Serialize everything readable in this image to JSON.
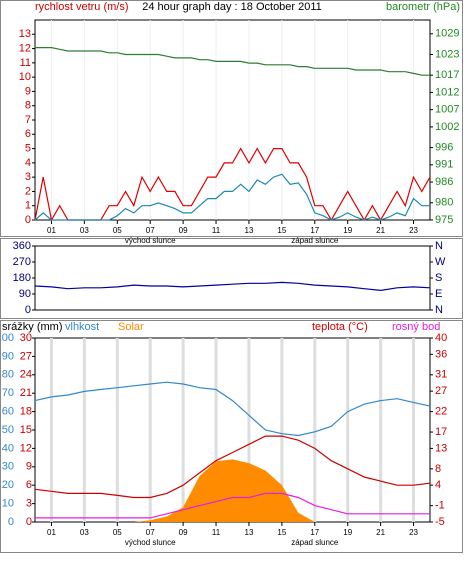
{
  "chart_data": [
    {
      "type": "line",
      "title": "24 hour graph day : 18 October 2011",
      "ylabel": "rychlost vetru (m/s)",
      "y2label": "barometr (hPa)",
      "ycolor": "#cc0000",
      "y2color": "#228b22",
      "grid": true,
      "x": [
        0,
        0.5,
        1,
        1.5,
        2,
        2.5,
        3,
        3.5,
        4,
        4.5,
        5,
        5.5,
        6,
        6.5,
        7,
        7.5,
        8,
        8.5,
        9,
        9.5,
        10,
        10.5,
        11,
        11.5,
        12,
        12.5,
        13,
        13.5,
        14,
        14.5,
        15,
        15.5,
        16,
        16.5,
        17,
        17.5,
        18,
        18.5,
        19,
        19.5,
        20,
        20.5,
        21,
        21.5,
        22,
        22.5,
        23,
        23.5,
        24
      ],
      "xlim": [
        0,
        24
      ],
      "xticks": [
        {
          "value": 1,
          "label": "01"
        },
        {
          "value": 3,
          "label": "03"
        },
        {
          "value": 5,
          "label": "05"
        },
        {
          "value": 7,
          "label": "07"
        },
        {
          "value": 9,
          "label": "09"
        },
        {
          "value": 11,
          "label": "11"
        },
        {
          "value": 13,
          "label": "13"
        },
        {
          "value": 15,
          "label": "15"
        },
        {
          "value": 17,
          "label": "17"
        },
        {
          "value": 19,
          "label": "19"
        },
        {
          "value": 21,
          "label": "21"
        },
        {
          "value": 23,
          "label": "23"
        }
      ],
      "ylim": [
        0,
        14
      ],
      "yticks": [
        0,
        1,
        2,
        3,
        4,
        5,
        6,
        7,
        8,
        9,
        10,
        11,
        12,
        13
      ],
      "y2lim": [
        975,
        1033
      ],
      "y2ticks": [
        975,
        980,
        986,
        991,
        996,
        1002,
        1007,
        1012,
        1017,
        1023,
        1029
      ],
      "annotations": [
        {
          "text": "východ slunce",
          "x": 7
        },
        {
          "text": "západ slunce",
          "x": 17
        }
      ],
      "series": [
        {
          "color": "#e00000",
          "values": [
            0,
            3,
            0,
            1,
            0,
            0,
            0,
            0,
            0,
            1,
            1,
            2,
            1,
            3,
            2,
            3,
            2,
            2,
            1,
            1,
            2,
            3,
            3,
            4,
            4,
            5,
            4,
            5,
            4,
            5,
            5,
            4,
            4,
            3,
            1,
            1,
            0,
            1,
            2,
            1,
            0,
            1,
            0,
            1,
            2,
            1,
            3,
            2,
            3
          ]
        },
        {
          "color": "#1a8ab0",
          "values": [
            0,
            0.5,
            0,
            0,
            0,
            0,
            0,
            0,
            0,
            0,
            0.3,
            0.8,
            0.5,
            1,
            1,
            1.2,
            1,
            0.8,
            0.5,
            0.5,
            1,
            1.5,
            1.5,
            2,
            2,
            2.5,
            2,
            2.8,
            2.5,
            3,
            3.2,
            2.5,
            2.6,
            1.8,
            0.5,
            0.3,
            0,
            0.2,
            0.5,
            0.2,
            0,
            0.2,
            0,
            0.2,
            0.5,
            0.3,
            1.5,
            1,
            1
          ]
        },
        {
          "color": "#2e7d32",
          "axis": "y2",
          "values": [
            1025,
            1025,
            1025,
            1024.5,
            1024,
            1024,
            1024,
            1024,
            1024,
            1023.5,
            1023.5,
            1023,
            1023,
            1023,
            1023,
            1023,
            1022.5,
            1022,
            1022,
            1022,
            1021.5,
            1021.5,
            1021,
            1021,
            1021,
            1021,
            1020.5,
            1020.5,
            1020,
            1020,
            1020,
            1020,
            1019.5,
            1019.5,
            1019,
            1019,
            1019,
            1019,
            1019,
            1018.5,
            1018.5,
            1018.5,
            1018.5,
            1018,
            1018,
            1018,
            1017.5,
            1017,
            1017
          ]
        }
      ]
    },
    {
      "type": "line",
      "ycolor": "#000080",
      "y2color": "#000080",
      "x": [
        0,
        1,
        2,
        3,
        4,
        5,
        6,
        7,
        8,
        9,
        10,
        11,
        12,
        13,
        14,
        15,
        16,
        17,
        18,
        19,
        20,
        21,
        22,
        23,
        24
      ],
      "xlim": [
        0,
        24
      ],
      "ylim": [
        0,
        360
      ],
      "yticks": [
        0,
        90,
        180,
        270,
        360
      ],
      "y2lim": [
        0,
        360
      ],
      "y2ticks": [
        {
          "value": 360,
          "label": "N"
        },
        {
          "value": 270,
          "label": "W"
        },
        {
          "value": 180,
          "label": "S"
        },
        {
          "value": 90,
          "label": "E"
        },
        {
          "value": 0,
          "label": "N"
        }
      ],
      "series": [
        {
          "color": "#0000a0",
          "values": [
            135,
            130,
            120,
            125,
            125,
            130,
            140,
            135,
            135,
            130,
            135,
            140,
            145,
            150,
            150,
            155,
            150,
            140,
            135,
            130,
            120,
            110,
            125,
            130,
            125
          ]
        }
      ]
    },
    {
      "type": "line",
      "y3label": "srážky (mm)",
      "ycolor": "#3388cc",
      "y2color": "#cc0000",
      "y3color": "#cc0000",
      "grid": true,
      "x": [
        0,
        1,
        2,
        3,
        4,
        5,
        6,
        7,
        8,
        9,
        10,
        11,
        12,
        13,
        14,
        15,
        16,
        17,
        18,
        19,
        20,
        21,
        22,
        23,
        24
      ],
      "xlim": [
        0,
        24
      ],
      "xticks": [
        {
          "value": 1,
          "label": "01"
        },
        {
          "value": 3,
          "label": "03"
        },
        {
          "value": 5,
          "label": "05"
        },
        {
          "value": 7,
          "label": "07"
        },
        {
          "value": 9,
          "label": "09"
        },
        {
          "value": 11,
          "label": "11"
        },
        {
          "value": 13,
          "label": "13"
        },
        {
          "value": 15,
          "label": "15"
        },
        {
          "value": 17,
          "label": "17"
        },
        {
          "value": 19,
          "label": "19"
        },
        {
          "value": 21,
          "label": "21"
        },
        {
          "value": 23,
          "label": "23"
        }
      ],
      "ylim": [
        0,
        100
      ],
      "yticks": [
        0,
        10,
        20,
        30,
        40,
        50,
        60,
        70,
        80,
        90,
        100
      ],
      "y3lim": [
        0,
        30
      ],
      "y3ticks": [
        0,
        3,
        6,
        9,
        12,
        15,
        18,
        21,
        24,
        27,
        30
      ],
      "y2lim": [
        -5,
        40
      ],
      "y2ticks": [
        -5,
        -1,
        4,
        8,
        13,
        17,
        22,
        27,
        31,
        36,
        40
      ],
      "annotations": [
        {
          "text": "východ slunce",
          "x": 7
        },
        {
          "text": "západ slunce",
          "x": 17
        }
      ],
      "series": [
        {
          "name": "vlhkost",
          "color": "#3388cc",
          "values": [
            66,
            68,
            69,
            71,
            72,
            73,
            74,
            75,
            76,
            75,
            73,
            72,
            66,
            58,
            50,
            48,
            47,
            49,
            52,
            60,
            64,
            66,
            67,
            65,
            63
          ]
        },
        {
          "name": "Solar",
          "color": "#ff8c00",
          "fill": true,
          "values": [
            0,
            0,
            0,
            0,
            0,
            0,
            0,
            1,
            3,
            8,
            25,
            33,
            34,
            32,
            28,
            20,
            5,
            0,
            0,
            0,
            0,
            0,
            0,
            0,
            0
          ]
        },
        {
          "name": "teplota (°C)",
          "color": "#cc0000",
          "axis": "y2",
          "values": [
            3,
            2.5,
            2,
            2,
            2,
            1.5,
            1,
            1,
            2,
            4,
            7,
            10,
            12,
            14,
            16,
            16,
            15,
            13,
            10,
            8,
            6,
            5,
            4,
            4,
            4.5
          ]
        },
        {
          "name": "rosný bod",
          "color": "#e020e0",
          "axis": "y2",
          "values": [
            -4,
            -4,
            -4,
            -4,
            -4,
            -4,
            -4,
            -4,
            -3,
            -2,
            -1,
            0,
            1,
            1,
            2,
            2,
            1,
            -1,
            -2,
            -3,
            -3,
            -3,
            -3,
            -3,
            -3
          ]
        }
      ]
    }
  ]
}
